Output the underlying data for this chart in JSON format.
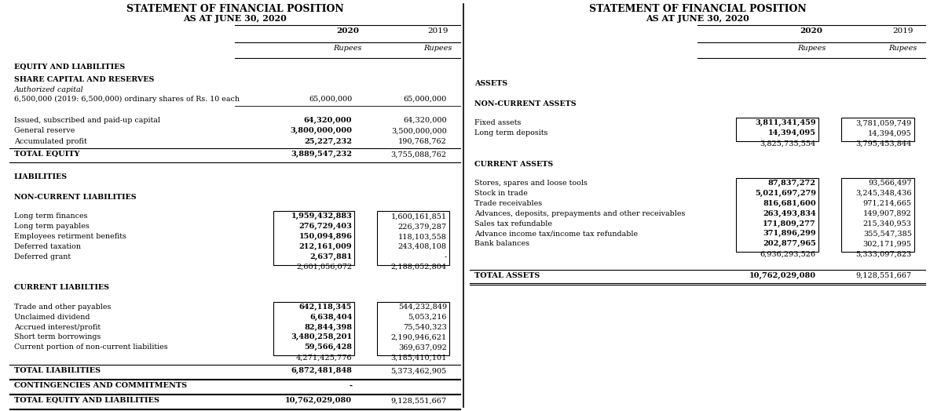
{
  "title": "STATEMENT OF FINANCIAL POSITION",
  "subtitle": "AS AT JUNE 30, 2020",
  "bg_color": "#ffffff",
  "left_panel": {
    "col1_header": "2020",
    "col2_header": "2019",
    "col1_sub": "Rupees",
    "col2_sub": "Rupees",
    "sections": [
      {
        "type": "section_header",
        "label": "EQUITY AND LIABILITIES"
      },
      {
        "type": "section_header",
        "label": "SHARE CAPITAL AND RESERVES"
      },
      {
        "type": "italic_label",
        "label": "Authorized capital"
      },
      {
        "type": "row",
        "label": "6,500,000 (2019: 6,500,000) ordinary shares of Rs. 10 each",
        "v1": "65,000,000",
        "v2": "65,000,000",
        "underline": true,
        "bold_v": false,
        "label_italic": false
      },
      {
        "type": "blank"
      },
      {
        "type": "row",
        "label": "Issued, subscribed and paid-up capital",
        "v1": "64,320,000",
        "v2": "64,320,000",
        "bold_v": true
      },
      {
        "type": "row",
        "label": "General reserve",
        "v1": "3,800,000,000",
        "v2": "3,500,000,000",
        "bold_v": true
      },
      {
        "type": "row",
        "label": "Accumulated profit",
        "v1": "25,227,232",
        "v2": "190,768,762",
        "bold_v": true
      },
      {
        "type": "total",
        "label": "TOTAL EQUITY",
        "v1": "3,889,547,232",
        "v2": "3,755,088,762",
        "top_line": true,
        "bottom_line": true
      },
      {
        "type": "blank"
      },
      {
        "type": "section_header",
        "label": "LIABILITIES"
      },
      {
        "type": "blank"
      },
      {
        "type": "section_header",
        "label": "NON-CURRENT LIABILITIES"
      },
      {
        "type": "blank"
      },
      {
        "type": "boxed",
        "label": "Long term finances",
        "v1": "1,959,432,883",
        "v2": "1,600,161,851"
      },
      {
        "type": "boxed",
        "label": "Long term payables",
        "v1": "276,729,403",
        "v2": "226,379,287"
      },
      {
        "type": "boxed",
        "label": "Employees retirment benefits",
        "v1": "150,094,896",
        "v2": "118,103,558"
      },
      {
        "type": "boxed",
        "label": "Deferred taxation",
        "v1": "212,161,009",
        "v2": "243,408,108"
      },
      {
        "type": "boxed",
        "label": "Deferred grant",
        "v1": "2,637,881",
        "v2": "-"
      },
      {
        "type": "subtotal",
        "label": "",
        "v1": "2,601,056,072",
        "v2": "2,188,052,804"
      },
      {
        "type": "blank"
      },
      {
        "type": "section_header",
        "label": "CURRENT LIABILTIES"
      },
      {
        "type": "blank"
      },
      {
        "type": "boxed",
        "label": "Trade and other payables",
        "v1": "642,118,345",
        "v2": "544,232,849"
      },
      {
        "type": "boxed",
        "label": "Unclaimed dividend",
        "v1": "6,638,404",
        "v2": "5,053,216"
      },
      {
        "type": "boxed",
        "label": "Accrued interest/profit",
        "v1": "82,844,398",
        "v2": "75,540,323"
      },
      {
        "type": "boxed",
        "label": "Short term borrowings",
        "v1": "3,480,258,201",
        "v2": "2,190,946,621"
      },
      {
        "type": "boxed",
        "label": "Current portion of non-current liabilities",
        "v1": "59,566,428",
        "v2": "369,637,092"
      },
      {
        "type": "subtotal",
        "label": "",
        "v1": "4,271,425,776",
        "v2": "3,185,410,101"
      },
      {
        "type": "total",
        "label": "TOTAL LIABILITIES",
        "v1": "6,872,481,848",
        "v2": "5,373,462,905",
        "top_line": true,
        "bottom_line": true
      },
      {
        "type": "total",
        "label": "CONTINGENCIES AND COMMITMENTS",
        "v1": "-",
        "v2": "",
        "top_line": true,
        "bottom_line": true
      },
      {
        "type": "total",
        "label": "TOTAL EQUITY AND LIABILITIES",
        "v1": "10,762,029,080",
        "v2": "9,128,551,667",
        "top_line": true,
        "bottom_line": true,
        "double_bottom": true
      }
    ]
  },
  "right_panel": {
    "col1_header": "2020",
    "col2_header": "2019",
    "col1_sub": "Rupees",
    "col2_sub": "Rupees",
    "sections": [
      {
        "type": "blank"
      },
      {
        "type": "blank"
      },
      {
        "type": "section_header",
        "label": "ASSETS"
      },
      {
        "type": "blank"
      },
      {
        "type": "section_header",
        "label": "NON-CURRENT ASSETS"
      },
      {
        "type": "blank"
      },
      {
        "type": "boxed",
        "label": "Fixed assets",
        "v1": "3,811,341,459",
        "v2": "3,781,059,749"
      },
      {
        "type": "boxed",
        "label": "Long term deposits",
        "v1": "14,394,095",
        "v2": "14,394,095"
      },
      {
        "type": "subtotal",
        "label": "",
        "v1": "3,825,735,554",
        "v2": "3,795,453,844"
      },
      {
        "type": "blank"
      },
      {
        "type": "section_header",
        "label": "CURRENT ASSETS"
      },
      {
        "type": "blank"
      },
      {
        "type": "boxed",
        "label": "Stores, spares and loose tools",
        "v1": "87,837,272",
        "v2": "93,566,497"
      },
      {
        "type": "boxed",
        "label": "Stock in trade",
        "v1": "5,021,697,279",
        "v2": "3,245,348,436"
      },
      {
        "type": "boxed",
        "label": "Trade receivables",
        "v1": "816,681,600",
        "v2": "971,214,665"
      },
      {
        "type": "boxed",
        "label": "Advances, deposits, prepayments and other receivables",
        "v1": "263,493,834",
        "v2": "149,907,892"
      },
      {
        "type": "boxed",
        "label": "Sales tax refundable",
        "v1": "171,809,277",
        "v2": "215,340,953"
      },
      {
        "type": "boxed",
        "label": "Advance income tax/income tax refundable",
        "v1": "371,896,299",
        "v2": "355,547,385"
      },
      {
        "type": "boxed",
        "label": "Bank balances",
        "v1": "202,877,965",
        "v2": "302,171,995"
      },
      {
        "type": "subtotal",
        "label": "",
        "v1": "6,936,293,526",
        "v2": "5,333,097,823"
      },
      {
        "type": "blank"
      },
      {
        "type": "total",
        "label": "TOTAL ASSETS",
        "v1": "10,762,029,080",
        "v2": "9,128,551,667",
        "top_line": true,
        "bottom_line": true,
        "double_bottom": true
      }
    ]
  }
}
